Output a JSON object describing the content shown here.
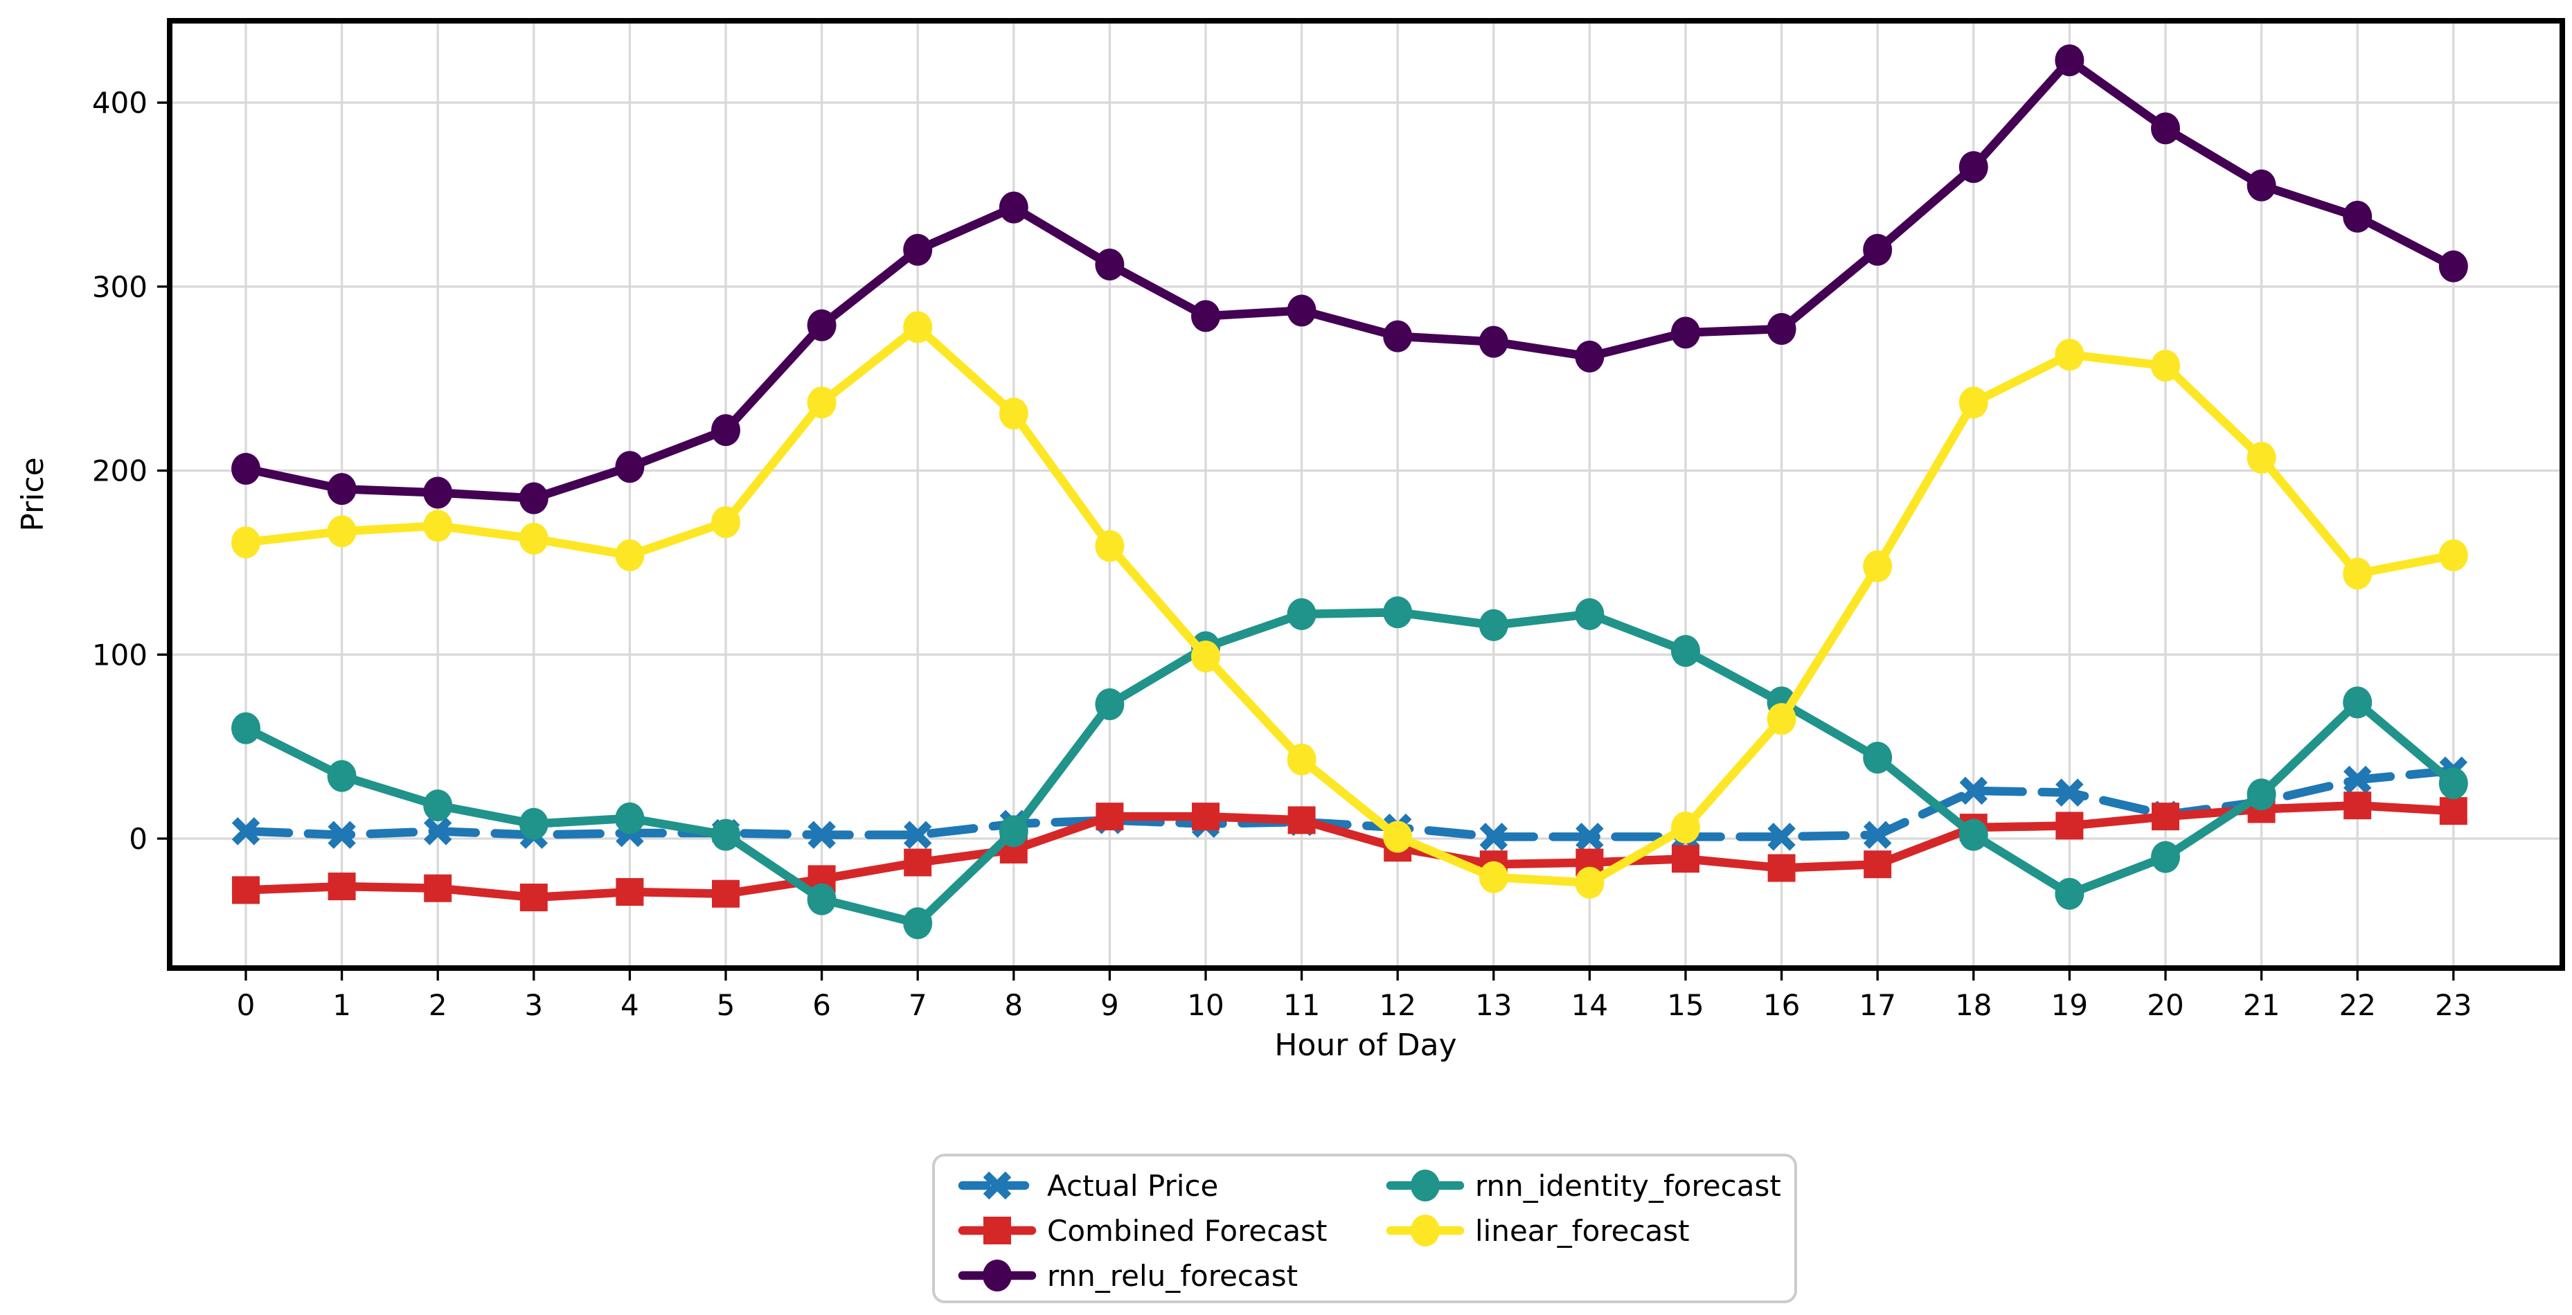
{
  "chart_data": {
    "type": "line",
    "title": "",
    "xlabel": "Hour of Day",
    "ylabel": "Price",
    "x": [
      0,
      1,
      2,
      3,
      4,
      5,
      6,
      7,
      8,
      9,
      10,
      11,
      12,
      13,
      14,
      15,
      16,
      17,
      18,
      19,
      20,
      21,
      22,
      23
    ],
    "xtick_labels": [
      "0",
      "1",
      "2",
      "3",
      "4",
      "5",
      "6",
      "7",
      "8",
      "9",
      "10",
      "11",
      "12",
      "13",
      "14",
      "15",
      "16",
      "17",
      "18",
      "19",
      "20",
      "21",
      "22",
      "23"
    ],
    "yticks": [
      0,
      100,
      200,
      300,
      400
    ],
    "ytick_labels": [
      "0",
      "100",
      "200",
      "300",
      "400"
    ],
    "ylim": [
      -70,
      445
    ],
    "xlim": [
      -0.8,
      24.1
    ],
    "grid": true,
    "legend_position": "below-center",
    "legend_ncol": 2,
    "legend_columns": [
      [
        0,
        1,
        2
      ],
      [
        3,
        4
      ]
    ],
    "series": [
      {
        "name": "Actual Price",
        "color": "#1f77b4",
        "linestyle": "dashed",
        "marker": "x",
        "values": [
          4,
          2,
          4,
          2,
          3,
          3,
          2,
          2,
          8,
          10,
          8,
          9,
          6,
          1,
          1,
          1,
          1,
          2,
          26,
          25,
          13,
          20,
          32,
          37
        ]
      },
      {
        "name": "Combined Forecast",
        "color": "#d62728",
        "linestyle": "solid",
        "marker": "square",
        "values": [
          -28,
          -26,
          -27,
          -32,
          -29,
          -30,
          -22,
          -13,
          -6,
          12,
          12,
          10,
          -5,
          -14,
          -13,
          -11,
          -16,
          -14,
          6,
          7,
          12,
          16,
          18,
          15
        ]
      },
      {
        "name": "rnn_relu_forecast",
        "color": "#440154",
        "linestyle": "solid",
        "marker": "circle",
        "values": [
          201,
          190,
          188,
          185,
          202,
          222,
          279,
          320,
          343,
          312,
          284,
          287,
          273,
          270,
          262,
          275,
          277,
          320,
          365,
          423,
          386,
          355,
          338,
          311
        ]
      },
      {
        "name": "rnn_identity_forecast",
        "color": "#20938b",
        "linestyle": "solid",
        "marker": "circle",
        "values": [
          60,
          34,
          18,
          8,
          11,
          2,
          -33,
          -46,
          4,
          73,
          104,
          122,
          123,
          116,
          122,
          102,
          74,
          44,
          2,
          -30,
          -10,
          24,
          74,
          30
        ]
      },
      {
        "name": "linear_forecast",
        "color": "#fde725",
        "linestyle": "solid",
        "marker": "circle",
        "values": [
          161,
          167,
          170,
          163,
          154,
          172,
          237,
          278,
          231,
          159,
          99,
          43,
          1,
          -21,
          -24,
          6,
          65,
          148,
          237,
          263,
          257,
          207,
          144,
          154
        ]
      }
    ],
    "grid_color": "#d9d9d9",
    "spine_color": "#000000"
  }
}
